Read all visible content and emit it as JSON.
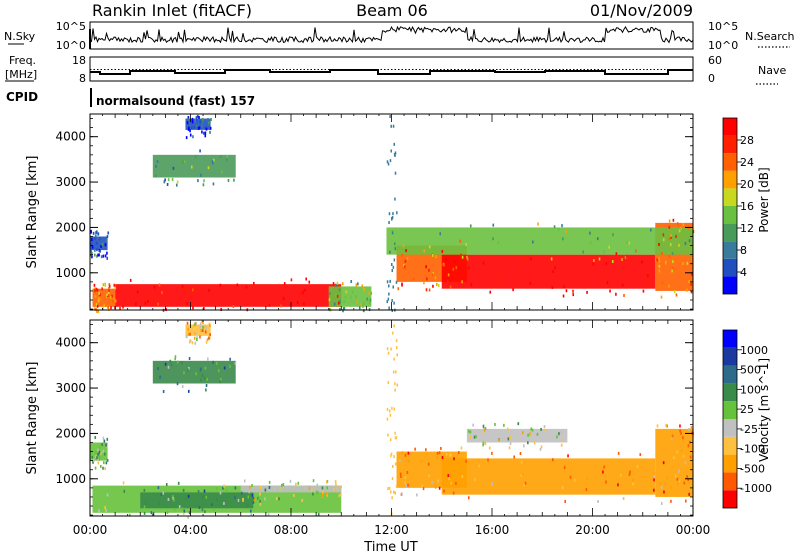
{
  "header": {
    "station": "Rankin Inlet (fitACF)",
    "beam": "Beam 06",
    "date": "01/Nov/2009"
  },
  "summary": {
    "nsky_label": "N.Sky",
    "nsky_ticks": [
      "10^5",
      "10^0"
    ],
    "nsearch_label": "N.Search",
    "nsearch_ticks": [
      "10^5",
      "10^0"
    ],
    "freq_label": "Freq.",
    "freq_unit": "[MHz]",
    "freq_ticks": [
      "18",
      "8"
    ],
    "nave_label": "Nave",
    "nave_ticks": [
      "60",
      "0"
    ],
    "cpid_label": "CPID",
    "cpid_value": "normalsound (fast) 157"
  },
  "colors": {
    "power": [
      "#0000ff",
      "#2050c0",
      "#3a7a9a",
      "#4a9a5a",
      "#6ac040",
      "#c8d820",
      "#ffa000",
      "#ff6000",
      "#ff2000",
      "#ff0000"
    ],
    "velocity": [
      "#ff0000",
      "#ff5a00",
      "#ffa000",
      "#ffc040",
      "#c0c0c0",
      "#66c23a",
      "#3a8a4a",
      "#2e6a8a",
      "#1a3aa0",
      "#0000ff"
    ]
  },
  "chart_data": [
    {
      "type": "heatmap",
      "name": "Power",
      "ylabel": "Slant Range [km]",
      "xlim": [
        "00:00",
        "24:00"
      ],
      "ylim": [
        180,
        4500
      ],
      "yticks": [
        1000,
        2000,
        3000,
        4000
      ],
      "colorbar_label": "Power [dB]",
      "colorbar_ticks": [
        "4",
        "8",
        "12",
        "16",
        "20",
        "24",
        "28"
      ],
      "colorbar_range": [
        0,
        32
      ],
      "regions": [
        {
          "x0": 1.0,
          "x1": 10.0,
          "y0": 250,
          "y1": 750,
          "level": 9
        },
        {
          "x0": 0.1,
          "x1": 1.0,
          "y0": 250,
          "y1": 650,
          "level": 7
        },
        {
          "x0": 9.5,
          "x1": 11.2,
          "y0": 250,
          "y1": 700,
          "level": 4
        },
        {
          "x0": 0.0,
          "x1": 0.7,
          "y0": 1500,
          "y1": 1800,
          "level": 1
        },
        {
          "x0": 12.2,
          "x1": 15.0,
          "y0": 800,
          "y1": 1600,
          "level": 7
        },
        {
          "x0": 14.0,
          "x1": 22.5,
          "y0": 650,
          "y1": 1400,
          "level": 9
        },
        {
          "x0": 22.5,
          "x1": 24.0,
          "y0": 600,
          "y1": 2100,
          "level": 7
        },
        {
          "x0": 11.8,
          "x1": 24.0,
          "y0": 1400,
          "y1": 2000,
          "level": 4
        },
        {
          "x0": 2.5,
          "x1": 5.8,
          "y0": 3100,
          "y1": 3600,
          "level": 3
        },
        {
          "x0": 3.8,
          "x1": 4.8,
          "y0": 4150,
          "y1": 4400,
          "level": 1
        }
      ]
    },
    {
      "type": "heatmap",
      "name": "Velocity",
      "ylabel": "Slant Range [km]",
      "xlabel": "Time UT",
      "xlim": [
        "00:00",
        "24:00"
      ],
      "xticks": [
        "00:00",
        "04:00",
        "08:00",
        "12:00",
        "16:00",
        "20:00",
        "00:00"
      ],
      "ylim": [
        180,
        4500
      ],
      "yticks": [
        1000,
        2000,
        3000,
        4000
      ],
      "colorbar_label": "Velocity [m s^-1]",
      "colorbar_ticks": [
        "-1000",
        "-500",
        "-100",
        "-25",
        "25",
        "100",
        "500",
        "1000"
      ],
      "colorbar_range": [
        -1250,
        1250
      ],
      "regions": [
        {
          "x0": 0.1,
          "x1": 10.0,
          "y0": 250,
          "y1": 850,
          "level": 5
        },
        {
          "x0": 2.0,
          "x1": 6.5,
          "y0": 350,
          "y1": 700,
          "level": 6
        },
        {
          "x0": 6.0,
          "x1": 10.0,
          "y0": 700,
          "y1": 850,
          "level": 4
        },
        {
          "x0": 0.0,
          "x1": 0.7,
          "y0": 1400,
          "y1": 1800,
          "level": 5
        },
        {
          "x0": 12.2,
          "x1": 15.0,
          "y0": 800,
          "y1": 1600,
          "level": 2
        },
        {
          "x0": 14.0,
          "x1": 22.5,
          "y0": 650,
          "y1": 1450,
          "level": 2
        },
        {
          "x0": 15.0,
          "x1": 19.0,
          "y0": 1800,
          "y1": 2100,
          "level": 4
        },
        {
          "x0": 22.5,
          "x1": 24.0,
          "y0": 600,
          "y1": 2100,
          "level": 2
        },
        {
          "x0": 2.5,
          "x1": 5.8,
          "y0": 3100,
          "y1": 3600,
          "level": 6
        },
        {
          "x0": 3.8,
          "x1": 4.8,
          "y0": 4150,
          "y1": 4400,
          "level": 3
        }
      ]
    }
  ]
}
